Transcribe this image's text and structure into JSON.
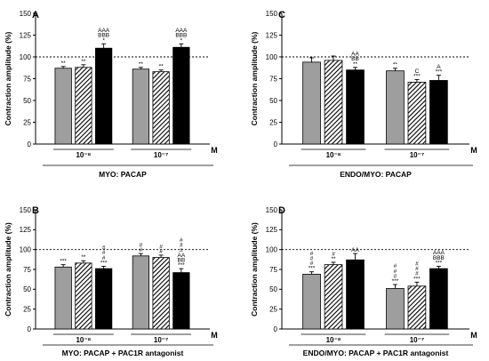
{
  "chart_data": [
    {
      "panel": "A",
      "type": "bar",
      "ylabel": "Contraction amplitude (%)",
      "ylim": [
        0,
        150
      ],
      "yticks": [
        0,
        25,
        50,
        75,
        100,
        125,
        150
      ],
      "reference_line": 100,
      "unit": "M",
      "caption": "MYO: PACAP",
      "groups": [
        {
          "label": "10⁻⁸",
          "values": [
            87,
            88,
            110
          ],
          "errors": [
            2,
            3,
            5
          ],
          "annotations": [
            [
              "**"
            ],
            [
              "**"
            ],
            [
              "AAA",
              "BBB",
              "*"
            ]
          ]
        },
        {
          "label": "10⁻⁷",
          "values": [
            86,
            83,
            111
          ],
          "errors": [
            2,
            2,
            4
          ],
          "annotations": [
            [
              "**"
            ],
            [
              "**"
            ],
            [
              "AAA",
              "BBB",
              "*"
            ]
          ]
        }
      ]
    },
    {
      "panel": "C",
      "type": "bar",
      "ylabel": "Contraction amplitude (%)",
      "ylim": [
        0,
        150
      ],
      "yticks": [
        0,
        25,
        50,
        75,
        100,
        125,
        150
      ],
      "reference_line": 100,
      "unit": "M",
      "caption": "ENDO/MYO: PACAP",
      "groups": [
        {
          "label": "10⁻⁸",
          "values": [
            94,
            96,
            85
          ],
          "errors": [
            5,
            5,
            3
          ],
          "annotations": [
            [],
            [],
            [
              "AA",
              "BB",
              "**"
            ]
          ]
        },
        {
          "label": "10⁻⁷",
          "values": [
            84,
            71,
            73
          ],
          "errors": [
            3,
            3,
            6
          ],
          "annotations": [
            [
              "**"
            ],
            [
              "C",
              "***"
            ],
            [
              "A",
              "***"
            ]
          ]
        }
      ]
    },
    {
      "panel": "B",
      "type": "bar",
      "ylabel": "Contraction amplitude (%)",
      "ylim": [
        0,
        150
      ],
      "yticks": [
        0,
        25,
        50,
        75,
        100,
        125,
        150
      ],
      "reference_line": 100,
      "unit": "M",
      "caption": "MYO: PACAP + PAC1R antagonist",
      "groups": [
        {
          "label": "10⁻⁸",
          "values": [
            78,
            83,
            76
          ],
          "errors": [
            3,
            3,
            3
          ],
          "annotations": [
            [
              "***"
            ],
            [
              "**"
            ],
            [
              "#",
              "#",
              "#",
              "***"
            ]
          ]
        },
        {
          "label": "10⁻⁷",
          "values": [
            92,
            90,
            71
          ],
          "errors": [
            3,
            3,
            5
          ],
          "annotations": [
            [
              "#",
              "#"
            ],
            [
              "#",
              "#"
            ],
            [
              "#",
              "#",
              "#",
              "AA",
              "BB",
              "***"
            ]
          ]
        }
      ]
    },
    {
      "panel": "D",
      "type": "bar",
      "ylabel": "Contraction amplitude (%)",
      "ylim": [
        0,
        150
      ],
      "yticks": [
        0,
        25,
        50,
        75,
        100,
        125,
        150
      ],
      "reference_line": 100,
      "unit": "M",
      "caption": "ENDO/MYO: PACAP + PAC1R antagonist",
      "groups": [
        {
          "label": "10⁻⁸",
          "values": [
            69,
            81,
            87
          ],
          "errors": [
            3,
            3,
            8
          ],
          "annotations": [
            [
              "#",
              "#",
              "#",
              "***"
            ],
            [
              "#",
              "**"
            ],
            [
              "AA"
            ]
          ]
        },
        {
          "label": "10⁻⁷",
          "values": [
            51,
            54,
            76
          ],
          "errors": [
            5,
            5,
            3
          ],
          "annotations": [
            [
              "#",
              "#",
              "#",
              "***"
            ],
            [
              "#",
              "#",
              "#",
              "***"
            ],
            [
              "AAA",
              "BBB",
              "***"
            ]
          ]
        }
      ]
    }
  ],
  "bar_styles": [
    {
      "fill": "#9e9e9e",
      "pattern": "none"
    },
    {
      "fill": "#ffffff",
      "pattern": "diagonal-hatch"
    },
    {
      "fill": "#000000",
      "pattern": "none"
    }
  ]
}
